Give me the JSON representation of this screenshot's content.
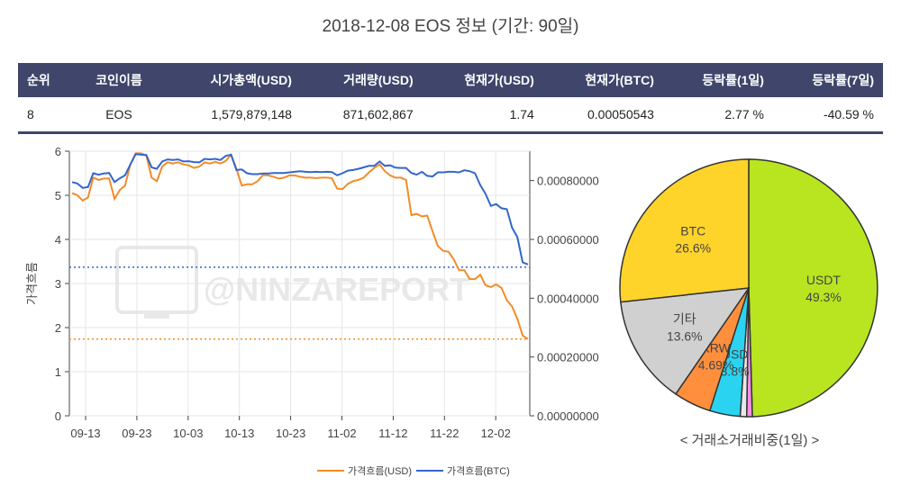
{
  "title": "2018-12-08 EOS 정보 (기간: 90일)",
  "table": {
    "headers": [
      "순위",
      "코인이름",
      "시가총액(USD)",
      "거래량(USD)",
      "현재가(USD)",
      "현재가(BTC)",
      "등락률(1일)",
      "등락률(7일)"
    ],
    "row": {
      "rank": "8",
      "name": "EOS",
      "market_cap": "1,579,879,148",
      "volume": "871,602,867",
      "price_usd": "1.74",
      "price_btc": "0.00050543",
      "change_1d": "2.77 %",
      "change_7d": "-40.59 %"
    }
  },
  "watermark": "@NINZAREPORT",
  "colors": {
    "usd": "#f28c28",
    "btc": "#3366cc",
    "header_bg": "#3f456b"
  },
  "chart_data": [
    {
      "type": "line",
      "x_ticks": [
        "09-13",
        "09-23",
        "10-03",
        "10-13",
        "10-23",
        "11-02",
        "11-12",
        "11-22",
        "12-02"
      ],
      "ylabel": "가격흐름",
      "y_ticks": [
        "0",
        "1",
        "2",
        "3",
        "4",
        "5",
        "6"
      ],
      "ylim": [
        0,
        6
      ],
      "y2_ticks": [
        "0.00000000",
        "0.00020000",
        "0.00040000",
        "0.00060000",
        "0.00080000"
      ],
      "y2lim": [
        0,
        0.0009
      ],
      "grid": true,
      "legend_position": "bottom",
      "reference_lines": {
        "usd_current": 1.74,
        "btc_current": 0.00050543
      },
      "series": [
        {
          "name": "가격흐름(USD)",
          "axis": "left",
          "values": [
            5.05,
            5.0,
            4.88,
            4.95,
            5.4,
            5.35,
            5.38,
            5.38,
            4.92,
            5.12,
            5.22,
            5.7,
            5.95,
            5.95,
            5.9,
            5.4,
            5.32,
            5.65,
            5.75,
            5.72,
            5.75,
            5.7,
            5.68,
            5.62,
            5.65,
            5.75,
            5.72,
            5.76,
            5.72,
            5.78,
            5.92,
            5.6,
            5.22,
            5.25,
            5.25,
            5.32,
            5.46,
            5.45,
            5.42,
            5.38,
            5.4,
            5.45,
            5.45,
            5.42,
            5.4,
            5.4,
            5.39,
            5.4,
            5.4,
            5.39,
            5.15,
            5.14,
            5.26,
            5.32,
            5.35,
            5.4,
            5.52,
            5.62,
            5.7,
            5.55,
            5.45,
            5.4,
            5.4,
            5.35,
            4.55,
            4.58,
            4.52,
            4.54,
            4.18,
            3.85,
            3.74,
            3.72,
            3.55,
            3.3,
            3.3,
            3.1,
            3.1,
            3.2,
            2.96,
            2.92,
            2.98,
            2.9,
            2.62,
            2.48,
            2.2,
            1.82,
            1.74
          ]
        },
        {
          "name": "가격흐름(BTC)",
          "axis": "right",
          "values": [
            0.000795,
            0.00079,
            0.000775,
            0.000778,
            0.000825,
            0.00082,
            0.000824,
            0.000826,
            0.000795,
            0.000808,
            0.000818,
            0.000855,
            0.00089,
            0.000888,
            0.000887,
            0.000845,
            0.00084,
            0.000865,
            0.000872,
            0.00087,
            0.000872,
            0.000865,
            0.000866,
            0.000863,
            0.000862,
            0.000874,
            0.000872,
            0.000874,
            0.00087,
            0.000884,
            0.000888,
            0.000836,
            0.000838,
            0.000825,
            0.000822,
            0.000822,
            0.000824,
            0.000824,
            0.000826,
            0.000826,
            0.000826,
            0.000828,
            0.00083,
            0.000832,
            0.00083,
            0.000829,
            0.00083,
            0.000829,
            0.00083,
            0.000829,
            0.000818,
            0.000825,
            0.000834,
            0.000836,
            0.00084,
            0.000845,
            0.00085,
            0.00085,
            0.000865,
            0.00085,
            0.000852,
            0.000844,
            0.000843,
            0.000843,
            0.000826,
            0.00082,
            0.00083,
            0.000816,
            0.000814,
            0.000828,
            0.000828,
            0.00083,
            0.00083,
            0.000828,
            0.000835,
            0.000832,
            0.000825,
            0.000785,
            0.000755,
            0.000714,
            0.00072,
            0.000706,
            0.000703,
            0.00064,
            0.000608,
            0.000522,
            0.000515
          ]
        }
      ]
    },
    {
      "type": "pie",
      "caption": "< 거래소거래비중(1일) >",
      "slices": [
        {
          "label": "USDT",
          "value": 49.3,
          "text": "49.3%",
          "color": "#b8e51f"
        },
        {
          "label": "",
          "value": 0.7,
          "text": "",
          "color": "#f58fe8"
        },
        {
          "label": "",
          "value": 0.8,
          "text": "",
          "color": "#e8e8e8"
        },
        {
          "label": "USD",
          "value": 3.8,
          "text": "3.8%",
          "color": "#2ad4f0"
        },
        {
          "label": "KRW",
          "value": 4.69,
          "text": "4.69%",
          "color": "#ff8f3c"
        },
        {
          "label": "기타",
          "value": 13.6,
          "text": "13.6%",
          "color": "#d0d0d0"
        },
        {
          "label": "BTC",
          "value": 26.6,
          "text": "26.6%",
          "color": "#ffd42a"
        }
      ]
    }
  ]
}
